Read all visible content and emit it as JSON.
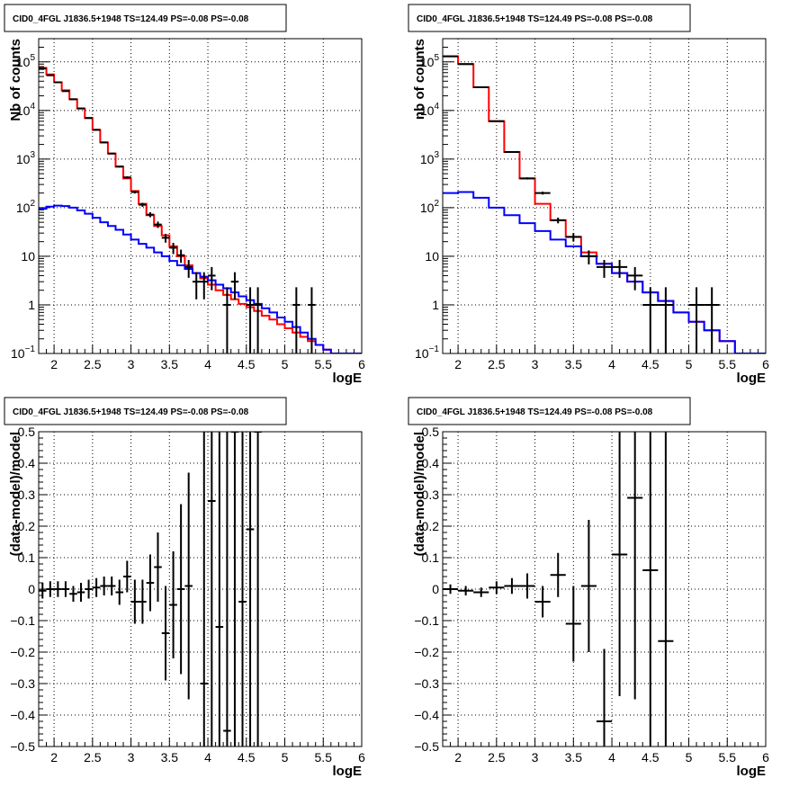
{
  "colors": {
    "model_total": "#ff0000",
    "model_background": "#0000ff",
    "data": "#000000",
    "grid": "#000000"
  },
  "chart_data": [
    {
      "type": "line",
      "title": "CID0_4FGL J1836.5+1948 TS=124.49 PS=-0.08 PS=-0.08",
      "xlabel": "logE",
      "ylabel": "Nb of counts",
      "xlim": [
        1.8,
        6
      ],
      "ylim": [
        0.1,
        300000
      ],
      "yscale": "log",
      "grid": true,
      "xticks": [
        "2",
        "2.5",
        "3",
        "3.5",
        "4",
        "4.5",
        "5",
        "5.5",
        "6"
      ],
      "yticks": [
        {
          "v": 0.1,
          "base": "10",
          "exp": "−1"
        },
        {
          "v": 1,
          "base": "1",
          "exp": ""
        },
        {
          "v": 10,
          "base": "10",
          "exp": ""
        },
        {
          "v": 100,
          "base": "10",
          "exp": "2"
        },
        {
          "v": 1000,
          "base": "10",
          "exp": "3"
        },
        {
          "v": 10000,
          "base": "10",
          "exp": "4"
        },
        {
          "v": 100000,
          "base": "10",
          "exp": "5"
        }
      ],
      "series": [
        {
          "role": "model_total",
          "style": "step",
          "bin_width": 0.1,
          "x": [
            1.8,
            1.9,
            2.0,
            2.1,
            2.2,
            2.3,
            2.4,
            2.5,
            2.6,
            2.7,
            2.8,
            2.9,
            3.0,
            3.1,
            3.2,
            3.3,
            3.4,
            3.5,
            3.6,
            3.7,
            3.8,
            3.9,
            4.0,
            4.1,
            4.2,
            4.3,
            4.4,
            4.5,
            4.6,
            4.7,
            4.8,
            4.9,
            5.0,
            5.1,
            5.2,
            5.3,
            5.4,
            5.5,
            5.6,
            5.7,
            5.8,
            5.9
          ],
          "y": [
            75000,
            55000,
            38000,
            26000,
            17000,
            11000,
            7000,
            4000,
            2200,
            1300,
            700,
            400,
            220,
            120,
            70,
            42,
            27,
            16,
            10,
            6.5,
            4.5,
            3.5,
            2.6,
            2.0,
            1.6,
            1.3,
            1.05,
            0.9,
            0.75,
            0.6,
            0.5,
            0.4,
            0.33,
            0.27,
            0.22,
            0.18,
            0.15,
            0.12,
            0.1,
            0.09,
            0.08,
            0.07
          ]
        },
        {
          "role": "model_background",
          "style": "step",
          "bin_width": 0.1,
          "x": [
            1.8,
            1.9,
            2.0,
            2.1,
            2.2,
            2.3,
            2.4,
            2.5,
            2.6,
            2.7,
            2.8,
            2.9,
            3.0,
            3.1,
            3.2,
            3.3,
            3.4,
            3.5,
            3.6,
            3.7,
            3.8,
            3.9,
            4.0,
            4.1,
            4.2,
            4.3,
            4.4,
            4.5,
            4.6,
            4.7,
            4.8,
            4.9,
            5.0,
            5.1,
            5.2,
            5.3,
            5.4,
            5.5,
            5.6,
            5.7,
            5.8,
            5.9
          ],
          "y": [
            95,
            105,
            110,
            108,
            100,
            88,
            75,
            62,
            50,
            42,
            35,
            28,
            22,
            18,
            15,
            12,
            10,
            8,
            6.5,
            5.5,
            4.5,
            3.8,
            3.2,
            2.6,
            2.2,
            1.8,
            1.5,
            1.25,
            1.05,
            0.85,
            0.7,
            0.55,
            0.45,
            0.35,
            0.27,
            0.2,
            0.15,
            0.12,
            0.1,
            0.1,
            0.1,
            0.1
          ]
        },
        {
          "role": "data",
          "style": "errorbar",
          "bin_width": 0.1,
          "x": [
            1.85,
            1.95,
            2.05,
            2.15,
            2.25,
            2.35,
            2.45,
            2.55,
            2.65,
            2.75,
            2.85,
            2.95,
            3.05,
            3.15,
            3.25,
            3.35,
            3.45,
            3.55,
            3.65,
            3.75,
            3.85,
            3.95,
            4.05,
            4.25,
            4.35,
            4.55,
            4.65,
            5.15,
            5.35
          ],
          "y": [
            73000,
            53000,
            38000,
            25000,
            17000,
            11000,
            7000,
            4000,
            2200,
            1300,
            700,
            420,
            210,
            115,
            72,
            45,
            24,
            15,
            10.5,
            6,
            3,
            3,
            4,
            1,
            3,
            1,
            1,
            1,
            1
          ],
          "yerr_lo": [
            270,
            230,
            195,
            160,
            130,
            105,
            84,
            63,
            47,
            36,
            26,
            20,
            14.5,
            10.7,
            8.5,
            6.7,
            4.9,
            3.9,
            3.2,
            2.4,
            1.7,
            1.7,
            2,
            0.9,
            1.7,
            0.9,
            0.9,
            0.9,
            0.9
          ],
          "yerr_hi": [
            270,
            230,
            195,
            160,
            130,
            105,
            84,
            63,
            47,
            36,
            26,
            20,
            14.5,
            10.7,
            8.5,
            6.7,
            4.9,
            3.9,
            3.2,
            2.4,
            1.7,
            1.7,
            2,
            1.3,
            1.7,
            1.3,
            1.3,
            1.3,
            1.3
          ]
        }
      ]
    },
    {
      "type": "line",
      "title": "CID0_4FGL J1836.5+1948 TS=124.49 PS=-0.08 PS=-0.08",
      "xlabel": "logE",
      "ylabel": "nb of counts",
      "xlim": [
        1.8,
        6
      ],
      "ylim": [
        0.1,
        300000
      ],
      "yscale": "log",
      "grid": true,
      "xticks": [
        "2",
        "2.5",
        "3",
        "3.5",
        "4",
        "4.5",
        "5",
        "5.5",
        "6"
      ],
      "yticks": [
        {
          "v": 0.1,
          "base": "10",
          "exp": "−1"
        },
        {
          "v": 1,
          "base": "1",
          "exp": ""
        },
        {
          "v": 10,
          "base": "10",
          "exp": ""
        },
        {
          "v": 100,
          "base": "10",
          "exp": "2"
        },
        {
          "v": 1000,
          "base": "10",
          "exp": "3"
        },
        {
          "v": 10000,
          "base": "10",
          "exp": "4"
        },
        {
          "v": 100000,
          "base": "10",
          "exp": "5"
        }
      ],
      "series": [
        {
          "role": "model_total",
          "style": "step",
          "bin_width": 0.2,
          "x": [
            1.8,
            2.0,
            2.2,
            2.4,
            2.6,
            2.8,
            3.0,
            3.2,
            3.4,
            3.6,
            3.8,
            4.0,
            4.2,
            4.4,
            4.6,
            4.8,
            5.0,
            5.2,
            5.4,
            5.6,
            5.8
          ],
          "y": [
            130000,
            90000,
            30000,
            6000,
            1400,
            400,
            120,
            55,
            25,
            12,
            7,
            4.5,
            3,
            1.8,
            1.2,
            0.7,
            0.45,
            0.3,
            0.18,
            0.1,
            0.1
          ]
        },
        {
          "role": "model_background",
          "style": "step",
          "bin_width": 0.2,
          "x": [
            1.8,
            2.0,
            2.2,
            2.4,
            2.6,
            2.8,
            3.0,
            3.2,
            3.4,
            3.6,
            3.8,
            4.0,
            4.2,
            4.4,
            4.6,
            4.8,
            5.0,
            5.2,
            5.4,
            5.6,
            5.8
          ],
          "y": [
            200,
            210,
            160,
            100,
            70,
            48,
            33,
            22,
            16,
            10,
            7,
            4.5,
            3,
            1.8,
            1.2,
            0.7,
            0.45,
            0.3,
            0.18,
            0.1,
            0.1
          ]
        },
        {
          "role": "data",
          "style": "errorbar",
          "bin_width": 0.2,
          "x": [
            1.9,
            2.1,
            2.3,
            2.5,
            2.7,
            2.9,
            3.1,
            3.3,
            3.5,
            3.7,
            3.9,
            4.1,
            4.3,
            4.5,
            4.7,
            5.1,
            5.3
          ],
          "y": [
            130000,
            90000,
            30000,
            6000,
            1400,
            400,
            200,
            55,
            25,
            10,
            6,
            6,
            4,
            1,
            1,
            1,
            1
          ],
          "yerr_lo": [
            360,
            300,
            170,
            77,
            37,
            20,
            14,
            7.4,
            5,
            3.2,
            2.4,
            2.4,
            2,
            0.9,
            0.9,
            0.9,
            0.9
          ],
          "yerr_hi": [
            360,
            300,
            170,
            77,
            37,
            20,
            14,
            7.4,
            5,
            3.2,
            2.4,
            2.4,
            2,
            1.3,
            1.3,
            1.3,
            1.3
          ]
        }
      ]
    },
    {
      "type": "scatter",
      "title": "CID0_4FGL J1836.5+1948 TS=124.49 PS=-0.08 PS=-0.08",
      "xlabel": "logE",
      "ylabel": "(data-model)/model",
      "xlim": [
        1.8,
        6
      ],
      "ylim": [
        -0.5,
        0.5
      ],
      "yscale": "linear",
      "grid": true,
      "xticks": [
        "2",
        "2.5",
        "3",
        "3.5",
        "4",
        "4.5",
        "5",
        "5.5",
        "6"
      ],
      "yticks": [
        "−0.5",
        "−0.4",
        "−0.3",
        "−0.2",
        "−0.1",
        "0",
        "0.1",
        "0.2",
        "0.3",
        "0.4",
        "0.5"
      ],
      "series": [
        {
          "role": "data",
          "style": "errorbar",
          "bin_width": 0.1,
          "x": [
            1.85,
            1.95,
            2.05,
            2.15,
            2.25,
            2.35,
            2.45,
            2.55,
            2.65,
            2.75,
            2.85,
            2.95,
            3.05,
            3.15,
            3.25,
            3.35,
            3.45,
            3.55,
            3.65,
            3.75,
            3.95,
            4.05,
            4.15,
            4.25,
            4.35,
            4.45,
            4.55,
            4.65
          ],
          "y": [
            -0.005,
            0.0,
            0.0,
            0.0,
            -0.015,
            -0.01,
            0.0,
            0.005,
            0.01,
            0.01,
            -0.01,
            0.04,
            -0.04,
            -0.04,
            0.02,
            0.07,
            -0.14,
            -0.05,
            0.0,
            0.01,
            -0.3,
            0.28,
            -0.12,
            -0.45,
            0.5,
            -0.04,
            0.19,
            0.5
          ],
          "yerr": [
            0.025,
            0.025,
            0.025,
            0.025,
            0.025,
            0.03,
            0.03,
            0.03,
            0.03,
            0.03,
            0.04,
            0.05,
            0.07,
            0.07,
            0.09,
            0.11,
            0.15,
            0.17,
            0.27,
            0.36,
            0.9,
            0.9,
            1.0,
            1.0,
            1.0,
            1.0,
            1.0,
            1.0
          ]
        }
      ]
    },
    {
      "type": "scatter",
      "title": "CID0_4FGL J1836.5+1948 TS=124.49 PS=-0.08 PS=-0.08",
      "xlabel": "logE",
      "ylabel": "(data-model)/model",
      "xlim": [
        1.8,
        6
      ],
      "ylim": [
        -0.5,
        0.5
      ],
      "yscale": "linear",
      "grid": true,
      "xticks": [
        "2",
        "2.5",
        "3",
        "3.5",
        "4",
        "4.5",
        "5",
        "5.5",
        "6"
      ],
      "yticks": [
        "−0.5",
        "−0.4",
        "−0.3",
        "−0.2",
        "−0.1",
        "0",
        "0.1",
        "0.2",
        "0.3",
        "0.4",
        "0.5"
      ],
      "series": [
        {
          "role": "data",
          "style": "errorbar",
          "bin_width": 0.2,
          "x": [
            1.9,
            2.1,
            2.3,
            2.5,
            2.7,
            2.9,
            3.1,
            3.3,
            3.5,
            3.7,
            3.9,
            4.1,
            4.3,
            4.5,
            4.7
          ],
          "y": [
            0.0,
            -0.005,
            -0.01,
            0.005,
            0.01,
            0.01,
            -0.04,
            0.045,
            -0.11,
            0.01,
            -0.42,
            0.11,
            0.29,
            0.06,
            -0.165
          ],
          "yerr": [
            0.015,
            0.015,
            0.015,
            0.02,
            0.025,
            0.04,
            0.05,
            0.07,
            0.12,
            0.21,
            0.23,
            0.45,
            0.64,
            1.0,
            1.0
          ]
        }
      ]
    }
  ]
}
